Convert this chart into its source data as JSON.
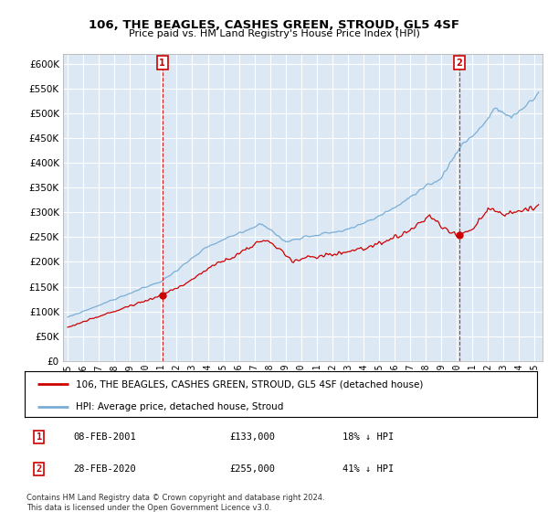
{
  "title": "106, THE BEAGLES, CASHES GREEN, STROUD, GL5 4SF",
  "subtitle": "Price paid vs. HM Land Registry's House Price Index (HPI)",
  "legend_line1": "106, THE BEAGLES, CASHES GREEN, STROUD, GL5 4SF (detached house)",
  "legend_line2": "HPI: Average price, detached house, Stroud",
  "annotation1_date": "08-FEB-2001",
  "annotation1_price": "£133,000",
  "annotation1_pct": "18% ↓ HPI",
  "annotation2_date": "28-FEB-2020",
  "annotation2_price": "£255,000",
  "annotation2_pct": "41% ↓ HPI",
  "footnote": "Contains HM Land Registry data © Crown copyright and database right 2024.\nThis data is licensed under the Open Government Licence v3.0.",
  "hpi_color": "#7aaed6",
  "price_color": "#cc0000",
  "marker1_x": 2001.083,
  "marker1_y": 133000,
  "marker2_x": 2020.167,
  "marker2_y": 255000,
  "vline1_x": 2001.083,
  "vline2_x": 2020.167,
  "ylim": [
    0,
    620000
  ],
  "xlim": [
    1994.7,
    2025.5
  ],
  "yticks": [
    0,
    50000,
    100000,
    150000,
    200000,
    250000,
    300000,
    350000,
    400000,
    450000,
    500000,
    550000,
    600000
  ],
  "xticks": [
    1995,
    1996,
    1997,
    1998,
    1999,
    2000,
    2001,
    2002,
    2003,
    2004,
    2005,
    2006,
    2007,
    2008,
    2009,
    2010,
    2011,
    2012,
    2013,
    2014,
    2015,
    2016,
    2017,
    2018,
    2019,
    2020,
    2021,
    2022,
    2023,
    2024,
    2025
  ],
  "chart_bg": "#dce9f5",
  "fig_bg": "#ffffff"
}
